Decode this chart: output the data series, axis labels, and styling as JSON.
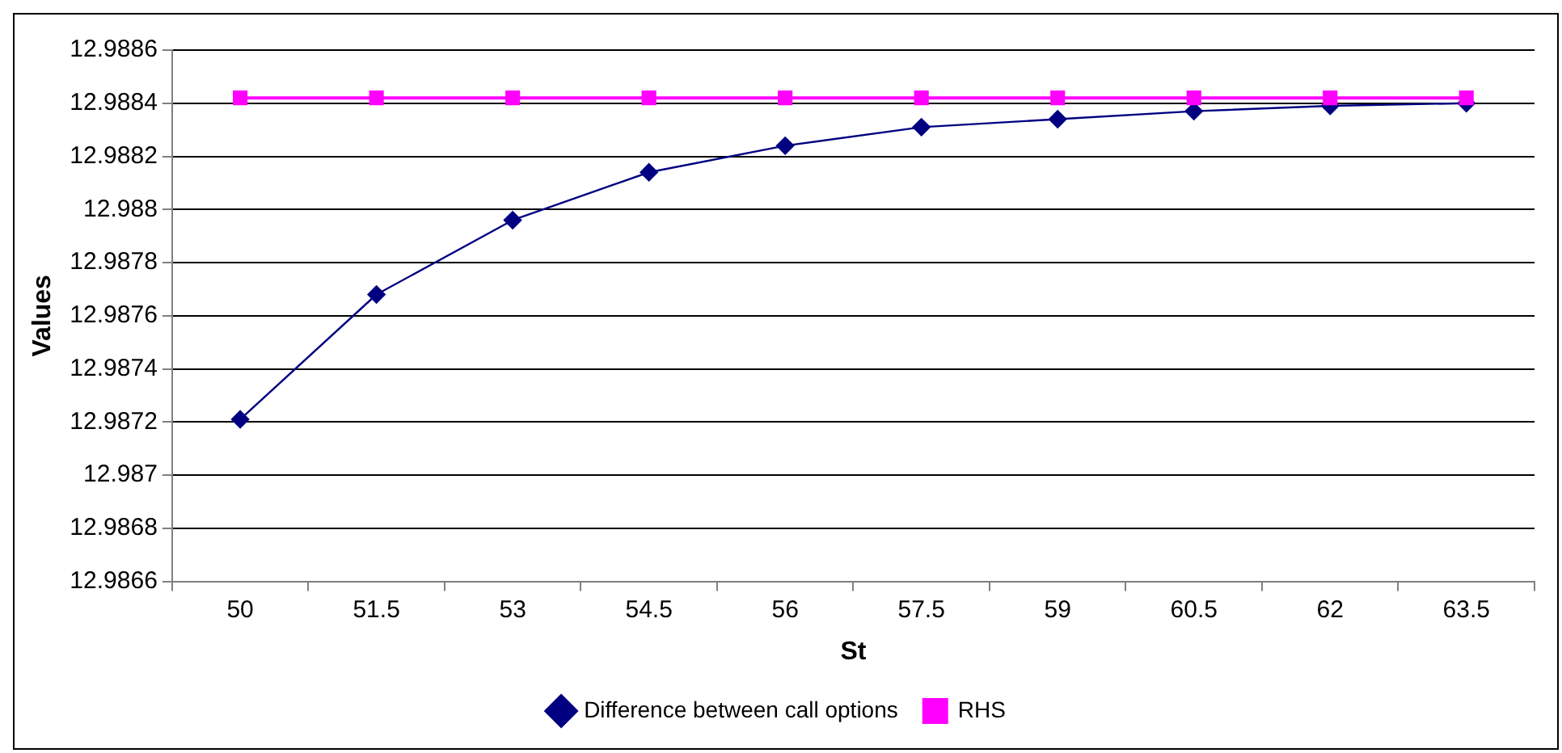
{
  "chart_data": {
    "type": "line",
    "xlabel": "St",
    "ylabel": "Values",
    "categories": [
      "50",
      "51.5",
      "53",
      "54.5",
      "56",
      "57.5",
      "59",
      "60.5",
      "62",
      "63.5"
    ],
    "series": [
      {
        "name": "Difference between call options",
        "color": "#000080",
        "marker": "diamond",
        "values": [
          12.98721,
          12.98768,
          12.98796,
          12.98814,
          12.98824,
          12.98831,
          12.98834,
          12.98837,
          12.98839,
          12.9884
        ]
      },
      {
        "name": "RHS",
        "color": "#ff00ff",
        "marker": "square",
        "values": [
          12.98842,
          12.98842,
          12.98842,
          12.98842,
          12.98842,
          12.98842,
          12.98842,
          12.98842,
          12.98842,
          12.98842
        ]
      }
    ],
    "ylim": [
      12.9866,
      12.9886
    ],
    "yticks": [
      12.9866,
      12.9868,
      12.987,
      12.9872,
      12.9874,
      12.9876,
      12.9878,
      12.988,
      12.9882,
      12.9884,
      12.9886
    ],
    "grid": "y",
    "legend": "bottom"
  }
}
